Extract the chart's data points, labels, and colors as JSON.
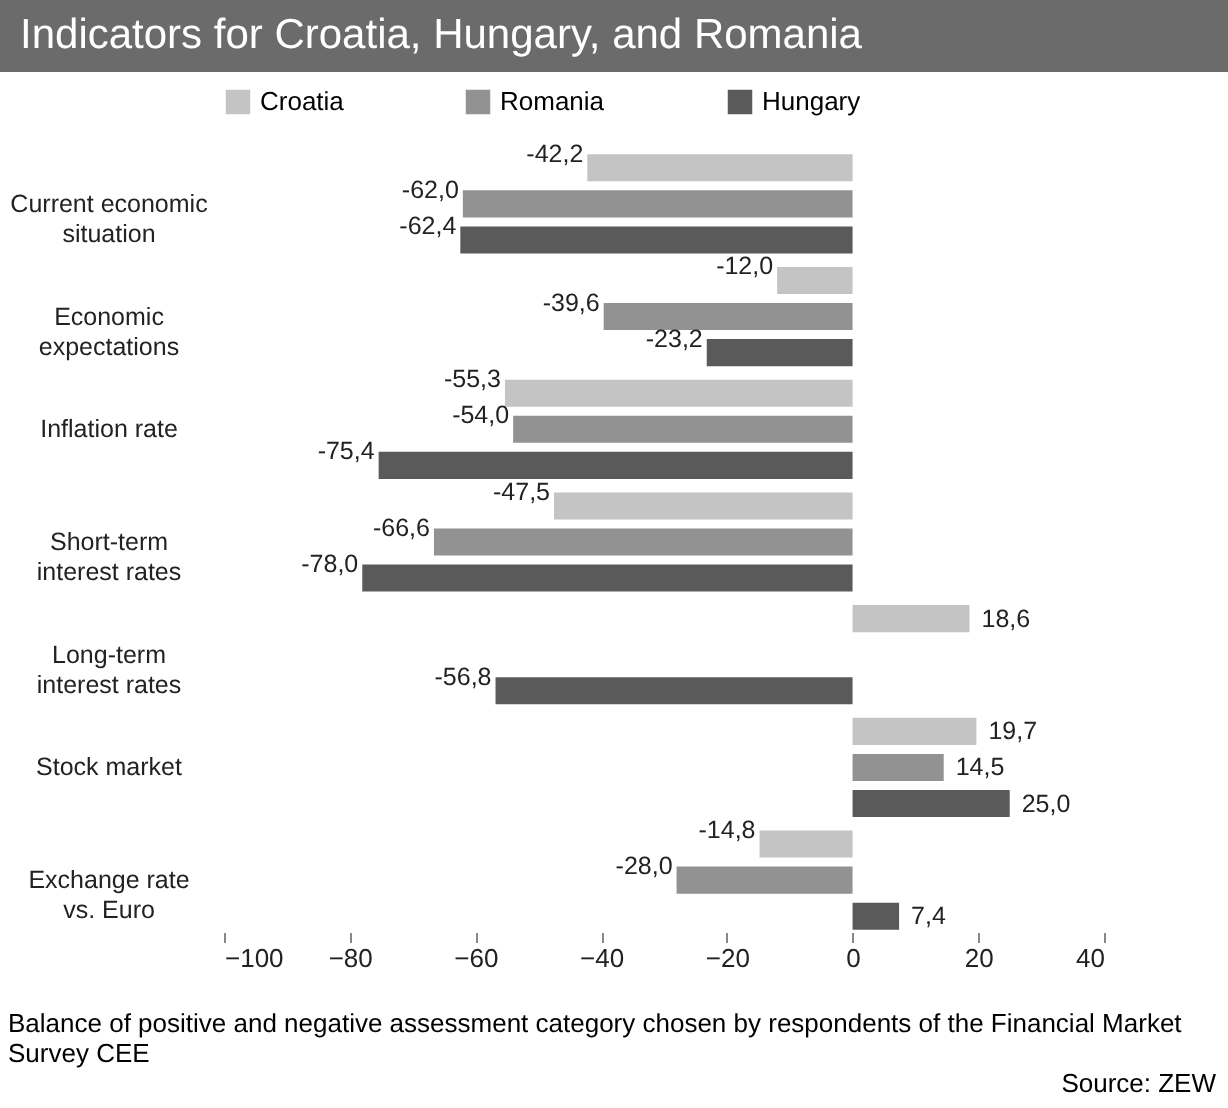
{
  "chart_data": {
    "type": "bar",
    "orientation": "horizontal",
    "title": "Indicators for Croatia, Hungary, and Romania",
    "categories": [
      "Current economic situation",
      "Economic expectations",
      "Inflation rate",
      "Short-term interest rates",
      "Long-term interest rates",
      "Stock market",
      "Exchange rate vs. Euro"
    ],
    "series": [
      {
        "name": "Croatia",
        "color": "#c4c4c4",
        "values": [
          -42.2,
          -12.0,
          -55.3,
          -47.5,
          18.6,
          19.7,
          -14.8
        ],
        "value_labels": [
          "-42,2",
          "-12,0",
          "-55,3",
          "-47,5",
          "18,6",
          "19,7",
          "-14,8"
        ]
      },
      {
        "name": "Romania",
        "color": "#929292",
        "values": [
          -62.0,
          -39.6,
          -54.0,
          -66.6,
          null,
          14.5,
          -28.0
        ],
        "value_labels": [
          "-62,0",
          "-39,6",
          "-54,0",
          "-66,6",
          null,
          "14,5",
          "-28,0"
        ]
      },
      {
        "name": "Hungary",
        "color": "#5a5a5a",
        "values": [
          -62.4,
          -23.2,
          -75.4,
          -78.0,
          -56.8,
          25.0,
          7.4
        ],
        "value_labels": [
          "-62,4",
          "-23,2",
          "-75,4",
          "-78,0",
          "-56,8",
          "25,0",
          "7,4"
        ]
      }
    ],
    "xlim": [
      -100,
      40
    ],
    "xticks": [
      -100,
      -80,
      -60,
      -40,
      -20,
      0,
      20,
      40
    ],
    "grid": false,
    "legend": "top",
    "annotations": [
      "Balance of positive and negative assessment category chosen by respondents of the Financial Market Survey CEE",
      "Source: ZEW"
    ]
  }
}
